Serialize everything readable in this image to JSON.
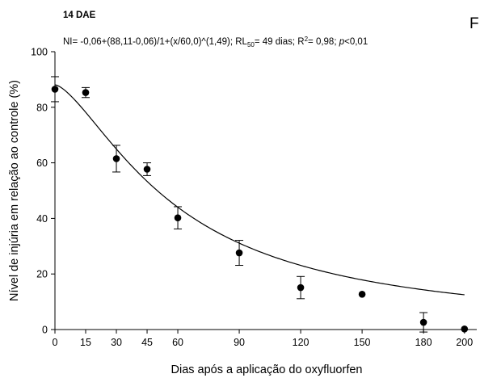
{
  "chart_data": {
    "type": "scatter",
    "panel_label": "14 DAE",
    "corner_letter": "F",
    "equation": {
      "model": "NI= -0,06+(88,11-0,06)/1+(x/60,0)^(1,49); RL",
      "rl_sub": "50",
      "rl_value": "= 49 dias; R",
      "r2_sup": "2",
      "r2_value": "= 0,98; ",
      "p_label": "p",
      "p_value": "<0,01"
    },
    "xlabel": "Dias após a aplicação do oxyfluorfen",
    "ylabel": "Nível de injúria em relação ao controle (%)",
    "xlim": [
      0,
      206
    ],
    "ylim": [
      0,
      100
    ],
    "xticks": [
      0,
      15,
      30,
      45,
      60,
      90,
      120,
      150,
      180,
      200
    ],
    "xtick_labels": [
      "0",
      "15",
      "30",
      "45",
      "60",
      "90",
      "120",
      "150",
      "180",
      "200"
    ],
    "yticks": [
      0,
      20,
      40,
      60,
      80,
      100
    ],
    "ytick_labels": [
      "0",
      "20",
      "40",
      "60",
      "80",
      "100"
    ],
    "points": [
      {
        "x": 0,
        "y": 86.5,
        "err": 4.5
      },
      {
        "x": 15,
        "y": 85.3,
        "err": 1.8
      },
      {
        "x": 30,
        "y": 61.5,
        "err": 4.8
      },
      {
        "x": 45,
        "y": 57.7,
        "err": 2.3
      },
      {
        "x": 60,
        "y": 40.2,
        "err": 4.0
      },
      {
        "x": 90,
        "y": 27.6,
        "err": 4.5
      },
      {
        "x": 120,
        "y": 15.1,
        "err": 4.0
      },
      {
        "x": 150,
        "y": 12.7,
        "err": 0
      },
      {
        "x": 180,
        "y": 2.6,
        "err": 3.5
      },
      {
        "x": 200,
        "y": 0.2,
        "err": 0
      }
    ],
    "fit": {
      "y0": -0.06,
      "a": 88.11,
      "x0": 60.0,
      "b": 1.49,
      "x_from": 0,
      "x_to": 200
    },
    "grid": false,
    "colors": {
      "points": "#000000",
      "line": "#000000"
    }
  }
}
